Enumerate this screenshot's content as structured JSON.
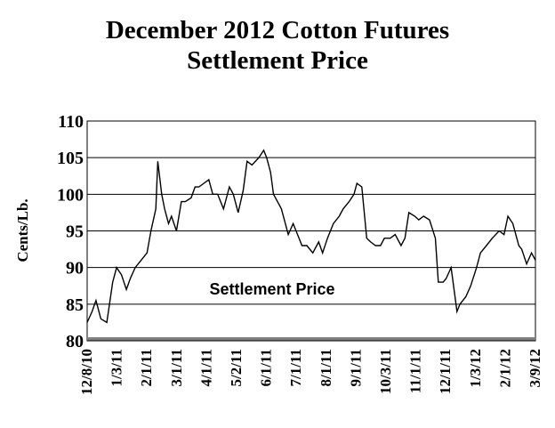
{
  "chart_data": {
    "type": "line",
    "title_line1": "December 2012 Cotton Futures",
    "title_line2": "Settlement Price",
    "ylabel": "Cents/Lb.",
    "xlabel": "",
    "ylim": [
      80,
      110
    ],
    "yticks": [
      80,
      85,
      90,
      95,
      100,
      105,
      110
    ],
    "x_tick_labels": [
      "12/8/10",
      "1/3/11",
      "2/1/11",
      "3/1/11",
      "4/1/11",
      "5/2/11",
      "6/1/11",
      "7/1/11",
      "8/1/11",
      "9/1/11",
      "10/3/11",
      "11/1/11",
      "12/1/11",
      "1/3/12",
      "2/1/12",
      "3/9/12"
    ],
    "grid": "horizontal",
    "annotation": "Settlement Price",
    "series": [
      {
        "x": [
          "2010-12-08",
          "2010-12-13",
          "2010-12-17",
          "2010-12-22",
          "2010-12-28",
          "2011-01-03",
          "2011-01-07",
          "2011-01-12",
          "2011-01-17",
          "2011-01-21",
          "2011-01-26",
          "2011-02-01",
          "2011-02-07",
          "2011-02-11",
          "2011-02-16",
          "2011-02-18",
          "2011-02-22",
          "2011-02-25",
          "2011-03-01",
          "2011-03-04",
          "2011-03-09",
          "2011-03-14",
          "2011-03-18",
          "2011-03-24",
          "2011-03-28",
          "2011-04-01",
          "2011-04-06",
          "2011-04-11",
          "2011-04-15",
          "2011-04-20",
          "2011-04-26",
          "2011-05-02",
          "2011-05-06",
          "2011-05-11",
          "2011-05-16",
          "2011-05-20",
          "2011-05-25",
          "2011-06-01",
          "2011-06-06",
          "2011-06-09",
          "2011-06-13",
          "2011-06-16",
          "2011-06-20",
          "2011-06-24",
          "2011-07-01",
          "2011-07-06",
          "2011-07-12",
          "2011-07-15",
          "2011-07-20",
          "2011-07-26",
          "2011-08-01",
          "2011-08-05",
          "2011-08-10",
          "2011-08-16",
          "2011-08-22",
          "2011-08-26",
          "2011-09-01",
          "2011-09-06",
          "2011-09-09",
          "2011-09-14",
          "2011-09-19",
          "2011-09-23",
          "2011-09-28",
          "2011-10-03",
          "2011-10-07",
          "2011-10-13",
          "2011-10-18",
          "2011-10-24",
          "2011-10-28",
          "2011-11-01",
          "2011-11-07",
          "2011-11-11",
          "2011-11-16",
          "2011-11-22",
          "2011-11-28",
          "2011-12-01",
          "2011-12-06",
          "2011-12-09",
          "2011-12-14",
          "2011-12-16",
          "2011-12-20",
          "2011-12-23",
          "2011-12-29",
          "2012-01-03",
          "2012-01-09",
          "2012-01-13",
          "2012-01-19",
          "2012-01-25",
          "2012-02-01",
          "2012-02-06",
          "2012-02-10",
          "2012-02-15",
          "2012-02-21",
          "2012-02-24",
          "2012-02-29",
          "2012-03-05",
          "2012-03-09"
        ],
        "values": [
          82.5,
          84,
          85.5,
          83,
          82.5,
          88,
          90,
          89,
          87,
          88.5,
          90,
          91,
          92,
          95,
          98,
          104.5,
          100,
          98,
          96,
          97,
          95,
          99,
          99,
          99.5,
          101,
          101,
          101.5,
          102,
          100,
          100,
          98,
          101,
          100,
          97.5,
          100.5,
          104.5,
          104,
          105,
          106,
          105,
          103,
          100,
          99,
          98,
          94.5,
          96,
          94,
          93,
          93,
          92,
          93.5,
          92,
          94,
          96,
          97,
          98,
          99,
          100,
          101.5,
          101,
          94,
          93.5,
          93,
          93,
          94,
          94,
          94.5,
          93,
          94,
          97.5,
          97,
          96.5,
          97,
          96.5,
          94,
          88,
          88,
          88.5,
          90,
          88,
          84,
          85,
          86,
          87.5,
          90,
          92,
          93,
          94,
          95,
          94.5,
          97,
          96,
          93,
          92.5,
          90.5,
          92,
          91
        ]
      }
    ]
  }
}
